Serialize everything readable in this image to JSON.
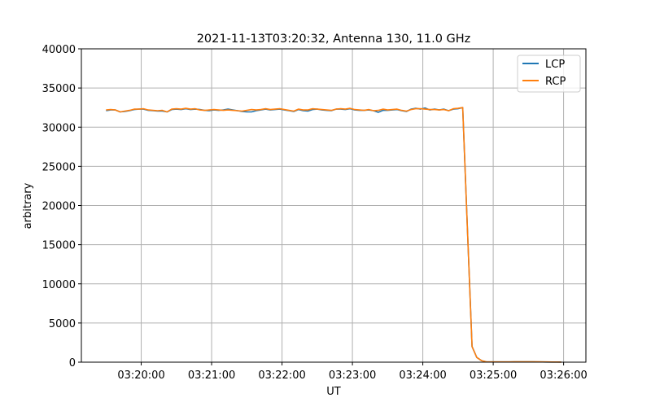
{
  "chart_data": {
    "type": "line",
    "title": "2021-11-13T03:20:32, Antenna 130, 11.0 GHz",
    "xlabel": "UT",
    "ylabel": "arbitrary",
    "xlim": [
      "03:19:09",
      "03:26:19"
    ],
    "ylim": [
      0,
      40000
    ],
    "grid": true,
    "legend_placement": "top-right",
    "xticks": [
      "03:20:00",
      "03:21:00",
      "03:22:00",
      "03:23:00",
      "03:24:00",
      "03:25:00",
      "03:26:00"
    ],
    "yticks": [
      0,
      5000,
      10000,
      15000,
      20000,
      25000,
      30000,
      35000,
      40000
    ],
    "x_start": "03:19:30",
    "x_step_seconds": 4,
    "series": [
      {
        "name": "LCP",
        "color": "#1f77b4",
        "values": [
          32100,
          32200,
          32200,
          31950,
          32000,
          32100,
          32250,
          32300,
          32300,
          32150,
          32100,
          32050,
          32050,
          31950,
          32250,
          32300,
          32250,
          32350,
          32250,
          32300,
          32250,
          32150,
          32100,
          32200,
          32150,
          32200,
          32300,
          32200,
          32100,
          32000,
          31950,
          31950,
          32100,
          32200,
          32300,
          32200,
          32250,
          32300,
          32200,
          32100,
          32000,
          32250,
          32100,
          32050,
          32250,
          32300,
          32200,
          32150,
          32100,
          32300,
          32300,
          32250,
          32350,
          32200,
          32150,
          32150,
          32200,
          32100,
          31900,
          32150,
          32150,
          32200,
          32250,
          32100,
          32000,
          32300,
          32400,
          32300,
          32450,
          32200,
          32300,
          32200,
          32300,
          32100,
          32300,
          32350,
          32500,
          17000,
          2000,
          600,
          200,
          50,
          30,
          30,
          30,
          30,
          30,
          40,
          40,
          50,
          40,
          40,
          30,
          30,
          20,
          20,
          20,
          20
        ]
      },
      {
        "name": "RCP",
        "color": "#ff7f0e",
        "values": [
          32200,
          32250,
          32200,
          31950,
          32050,
          32150,
          32300,
          32300,
          32350,
          32200,
          32150,
          32100,
          32150,
          31950,
          32300,
          32350,
          32300,
          32400,
          32300,
          32350,
          32200,
          32150,
          32200,
          32250,
          32200,
          32150,
          32200,
          32150,
          32100,
          32050,
          32150,
          32250,
          32200,
          32250,
          32350,
          32250,
          32300,
          32350,
          32250,
          32150,
          32050,
          32300,
          32200,
          32200,
          32350,
          32300,
          32250,
          32200,
          32150,
          32300,
          32350,
          32300,
          32400,
          32250,
          32200,
          32150,
          32250,
          32100,
          32150,
          32300,
          32200,
          32250,
          32300,
          32150,
          32050,
          32250,
          32350,
          32350,
          32300,
          32250,
          32250,
          32200,
          32250,
          32100,
          32350,
          32400,
          32500,
          17000,
          2000,
          600,
          200,
          50,
          30,
          30,
          30,
          30,
          30,
          40,
          50,
          50,
          50,
          40,
          40,
          30,
          30,
          20,
          20,
          10
        ]
      }
    ]
  }
}
